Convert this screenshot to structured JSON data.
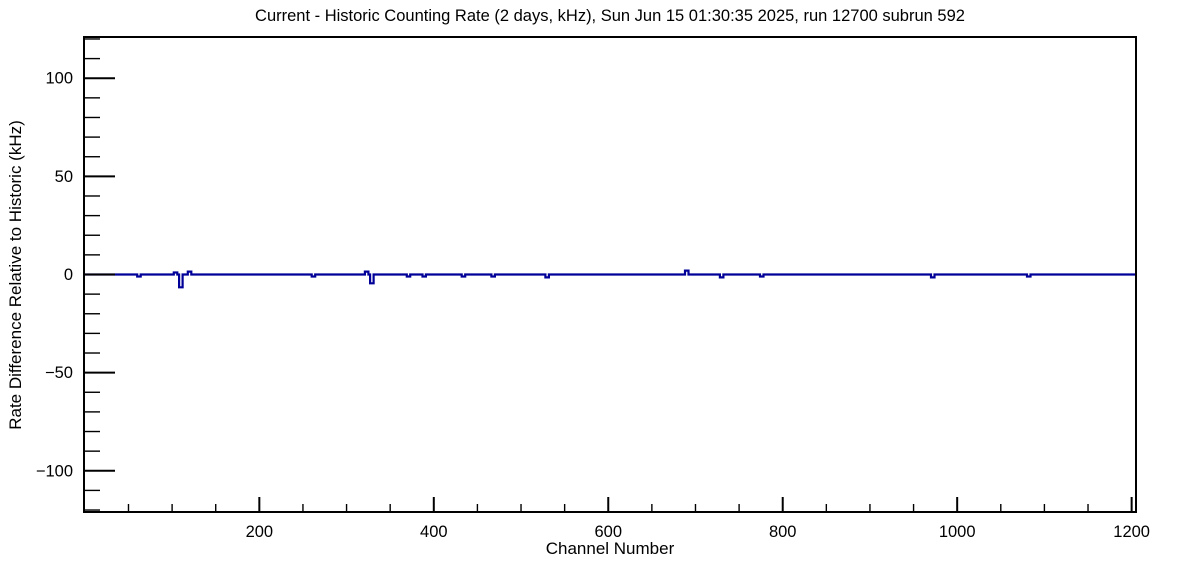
{
  "chart_data": {
    "type": "line",
    "title": "Current - Historic Counting Rate (2 days, kHz), Sun Jun 15 01:30:35 2025, run 12700 subrun 592",
    "xlabel": "Channel Number",
    "ylabel": "Rate Difference Relative to Historic (kHz)",
    "xlim": [
      -1,
      1205
    ],
    "ylim": [
      -121,
      121
    ],
    "grid": false,
    "legend": false,
    "line_color": "#000099",
    "axis_color": "#000000",
    "x_ticks": {
      "major": [
        {
          "v": 200,
          "label": "200"
        },
        {
          "v": 400,
          "label": "400"
        },
        {
          "v": 600,
          "label": "600"
        },
        {
          "v": 800,
          "label": "800"
        },
        {
          "v": 1000,
          "label": "1000"
        },
        {
          "v": 1200,
          "label": "1200"
        }
      ],
      "minor_start": 50,
      "minor_end": 1200,
      "minor_step": 50
    },
    "y_ticks": {
      "major": [
        {
          "v": 100,
          "label": "100"
        },
        {
          "v": 50,
          "label": "50"
        },
        {
          "v": 0,
          "label": "0"
        },
        {
          "v": -50,
          "label": "−50"
        },
        {
          "v": -100,
          "label": "−100"
        }
      ],
      "minor_start": -120,
      "minor_end": 120,
      "minor_step": 10
    },
    "series": [
      {
        "name": "current-minus-historic-rate",
        "baseline_value": 0,
        "channel_range": [
          0,
          1205
        ],
        "pulse_width_channels": 4,
        "pulses": [
          {
            "ch": 62,
            "v": -1.0
          },
          {
            "ch": 104,
            "v": 1.0
          },
          {
            "ch": 110,
            "v": -6.5
          },
          {
            "ch": 120,
            "v": 1.5
          },
          {
            "ch": 262,
            "v": -1.0
          },
          {
            "ch": 323,
            "v": 1.5
          },
          {
            "ch": 329,
            "v": -4.5
          },
          {
            "ch": 371,
            "v": -1.0
          },
          {
            "ch": 389,
            "v": -1.0
          },
          {
            "ch": 434,
            "v": -1.0
          },
          {
            "ch": 468,
            "v": -1.0
          },
          {
            "ch": 530,
            "v": -1.5
          },
          {
            "ch": 690,
            "v": 2.0
          },
          {
            "ch": 730,
            "v": -1.5
          },
          {
            "ch": 776,
            "v": -1.0
          },
          {
            "ch": 972,
            "v": -1.5
          },
          {
            "ch": 1082,
            "v": -1.0
          }
        ]
      }
    ]
  }
}
